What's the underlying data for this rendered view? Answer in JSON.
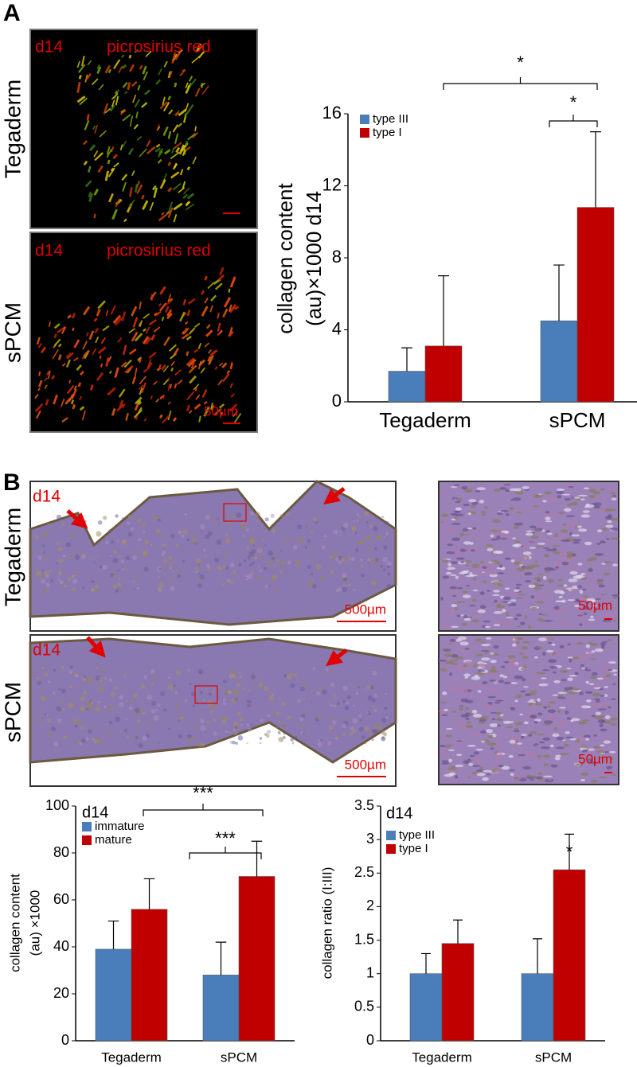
{
  "panel_labels": [
    "A",
    "B"
  ],
  "panel_a": {
    "row_labels": [
      "Tegaderm",
      "sPCM"
    ],
    "images": [
      {
        "day": "d14",
        "stain": "picrosirius red"
      },
      {
        "day": "d14",
        "stain": "picrosirius red",
        "scale": "50µm"
      }
    ]
  },
  "panel_b": {
    "row_labels": [
      "Tegaderm",
      "sPCM"
    ],
    "images": [
      {
        "day": "d14",
        "scale": "500µm"
      },
      {
        "day": "d14",
        "scale": "500µm"
      }
    ],
    "zoom_scales": [
      "50µm",
      "50µm"
    ]
  },
  "chart_data": [
    {
      "type": "bar",
      "y_label": [
        "collagen content",
        "(au)×1000 d14"
      ],
      "categories": [
        "Tegaderm",
        "sPCM"
      ],
      "series": [
        {
          "name": "type III",
          "color": "#4a7ebb",
          "values": [
            1.7,
            4.5
          ],
          "errors": [
            1.3,
            3.1
          ]
        },
        {
          "name": "type I",
          "color": "#c00000",
          "values": [
            3.1,
            10.8
          ],
          "errors": [
            3.9,
            4.2
          ]
        }
      ],
      "ylim": [
        0,
        16
      ],
      "yticks": [
        0,
        4,
        8,
        12,
        16
      ],
      "annotations": [
        "*",
        "*"
      ]
    },
    {
      "type": "bar",
      "title": "d14",
      "y_label": [
        "collagen content",
        "(au) ×1000"
      ],
      "categories": [
        "Tegaderm",
        "sPCM"
      ],
      "series": [
        {
          "name": "immature",
          "color": "#4a7ebb",
          "values": [
            39,
            28
          ],
          "errors": [
            12,
            14
          ]
        },
        {
          "name": "mature",
          "color": "#c00000",
          "values": [
            56,
            70
          ],
          "errors": [
            13,
            15
          ]
        }
      ],
      "ylim": [
        0,
        100
      ],
      "yticks": [
        0,
        20,
        40,
        60,
        80,
        100
      ],
      "annotations": [
        "***",
        "***"
      ]
    },
    {
      "type": "bar",
      "title": "d14",
      "y_label": [
        "collagen ratio (I:III)"
      ],
      "categories": [
        "Tegaderm",
        "sPCM"
      ],
      "series": [
        {
          "name": "type III",
          "color": "#4a7ebb",
          "values": [
            1,
            1
          ],
          "errors": [
            0.3,
            0.52
          ]
        },
        {
          "name": "type I",
          "color": "#c00000",
          "values": [
            1.45,
            2.55
          ],
          "errors": [
            0.35,
            0.53
          ]
        }
      ],
      "ylim": [
        0,
        3.5
      ],
      "yticks": [
        0,
        0.5,
        1,
        1.5,
        2,
        2.5,
        3,
        3.5
      ],
      "annotations": [
        "*"
      ]
    }
  ]
}
